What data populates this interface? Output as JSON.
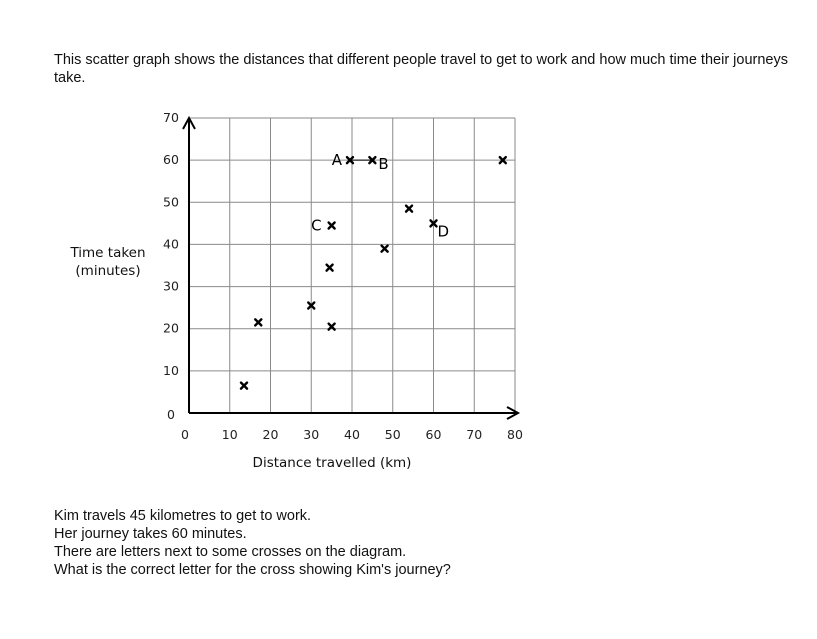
{
  "intro_text": "This scatter graph shows the distances that different people travel to get to work and how much time their journeys take.",
  "chart_data": {
    "type": "scatter",
    "title": "",
    "xlabel": "Distance travelled (km)",
    "ylabel_lines": [
      "Time taken",
      "(minutes)"
    ],
    "xlim": [
      0,
      80
    ],
    "ylim": [
      0,
      70
    ],
    "x_ticks": [
      "0",
      "10",
      "20",
      "30",
      "40",
      "50",
      "60",
      "70",
      "80"
    ],
    "y_ticks": [
      "0",
      "10",
      "20",
      "30",
      "40",
      "50",
      "60",
      "70"
    ],
    "grid": true,
    "marker": "✖",
    "points": [
      {
        "x": 13.5,
        "y": 6.5,
        "label": ""
      },
      {
        "x": 17,
        "y": 21.5,
        "label": ""
      },
      {
        "x": 30,
        "y": 25.5,
        "label": ""
      },
      {
        "x": 35,
        "y": 20.5,
        "label": ""
      },
      {
        "x": 34.5,
        "y": 34.5,
        "label": ""
      },
      {
        "x": 35,
        "y": 44.5,
        "label": "C"
      },
      {
        "x": 48,
        "y": 39,
        "label": ""
      },
      {
        "x": 39.5,
        "y": 60,
        "label": "A"
      },
      {
        "x": 45,
        "y": 60,
        "label": "B"
      },
      {
        "x": 54,
        "y": 48.5,
        "label": ""
      },
      {
        "x": 60,
        "y": 45,
        "label": "D"
      },
      {
        "x": 77,
        "y": 60,
        "label": ""
      }
    ]
  },
  "question_lines": [
    "Kim travels 45 kilometres to get to work.",
    "Her journey takes 60 minutes.",
    "There are letters next to some crosses on the diagram.",
    "What is the correct letter for the cross showing Kim's journey?"
  ]
}
